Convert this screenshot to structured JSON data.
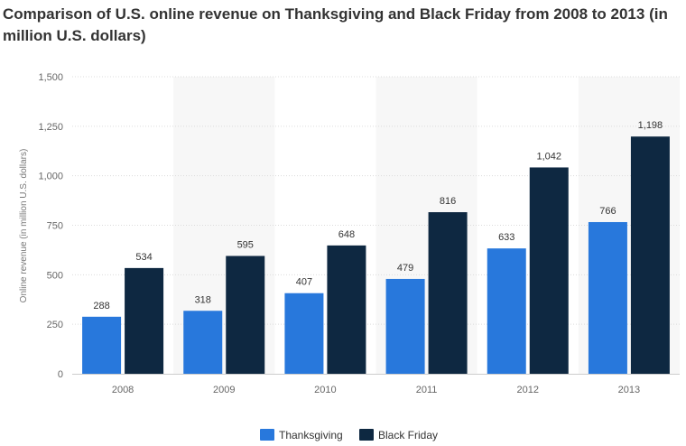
{
  "chart_data": {
    "type": "bar",
    "title": "Comparison of U.S. online revenue on Thanksgiving and Black Friday from 2008 to 2013 (in million U.S. dollars)",
    "ylabel": "Online revenue (in million U.S. dollars)",
    "xlabel": "",
    "categories": [
      "2008",
      "2009",
      "2010",
      "2011",
      "2012",
      "2013"
    ],
    "ylim": [
      0,
      1500
    ],
    "yticks": [
      0,
      250,
      500,
      750,
      1000,
      1250,
      1500
    ],
    "ytick_labels": [
      "0",
      "250",
      "500",
      "750",
      "1,000",
      "1,250",
      "1,500"
    ],
    "series": [
      {
        "name": "Thanksgiving",
        "color": "#2878dc",
        "values": [
          288,
          318,
          407,
          479,
          633,
          766
        ],
        "labels": [
          "288",
          "318",
          "407",
          "479",
          "633",
          "766"
        ]
      },
      {
        "name": "Black Friday",
        "color": "#0e2841",
        "values": [
          534,
          595,
          648,
          816,
          1042,
          1198
        ],
        "labels": [
          "534",
          "595",
          "648",
          "816",
          "1,042",
          "1,198"
        ]
      }
    ],
    "grid": true,
    "legend": "bottom-center"
  }
}
